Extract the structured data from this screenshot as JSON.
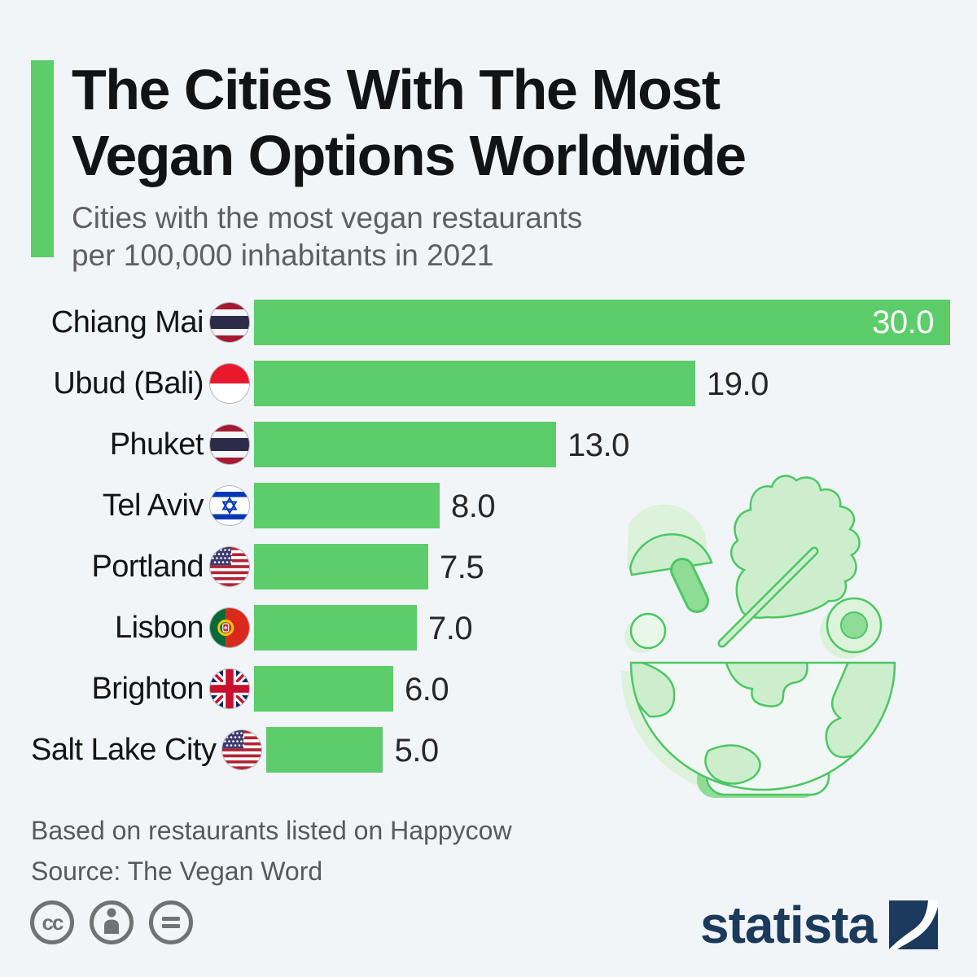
{
  "header": {
    "title": "The Cities With The Most\nVegan Options Worldwide",
    "subtitle": "Cities with the most vegan restaurants\nper 100,000 inhabitants in 2021",
    "accent_color": "#5ccd6a"
  },
  "chart_data": {
    "type": "bar",
    "orientation": "horizontal",
    "title": "The Cities With The Most Vegan Options Worldwide",
    "subtitle": "Cities with the most vegan restaurants per 100,000 inhabitants in 2021",
    "unit": "vegan restaurants per 100,000 inhabitants",
    "xlim": [
      0,
      30
    ],
    "grid": false,
    "legend": false,
    "bar_color": "#5ccd6a",
    "categories": [
      "Chiang Mai",
      "Ubud (Bali)",
      "Phuket",
      "Tel Aviv",
      "Portland",
      "Lisbon",
      "Brighton",
      "Salt Lake City"
    ],
    "values": [
      30.0,
      19.0,
      13.0,
      8.0,
      7.5,
      7.0,
      6.0,
      5.0
    ],
    "rows": [
      {
        "label": "Chiang Mai",
        "flag": "thailand-flag",
        "value": 30.0,
        "value_label": "30.0",
        "value_inside": true
      },
      {
        "label": "Ubud (Bali)",
        "flag": "indonesia-flag",
        "value": 19.0,
        "value_label": "19.0",
        "value_inside": false
      },
      {
        "label": "Phuket",
        "flag": "thailand-flag",
        "value": 13.0,
        "value_label": "13.0",
        "value_inside": false
      },
      {
        "label": "Tel Aviv",
        "flag": "israel-flag",
        "value": 8.0,
        "value_label": "8.0",
        "value_inside": false
      },
      {
        "label": "Portland",
        "flag": "usa-flag",
        "value": 7.5,
        "value_label": "7.5",
        "value_inside": false
      },
      {
        "label": "Lisbon",
        "flag": "portugal-flag",
        "value": 7.0,
        "value_label": "7.0",
        "value_inside": false
      },
      {
        "label": "Brighton",
        "flag": "united-kingdom-flag",
        "value": 6.0,
        "value_label": "6.0",
        "value_inside": false
      },
      {
        "label": "Salt Lake City",
        "flag": "usa-flag",
        "value": 5.0,
        "value_label": "5.0",
        "value_inside": false
      }
    ]
  },
  "illustration": {
    "name": "vegan-earth-salad-bowl-illustration"
  },
  "footer": {
    "note": "Based on restaurants listed on Happycow",
    "source": "Source: The Vegan Word",
    "license_icons": [
      "cc-icon",
      "attribution-icon",
      "no-derivatives-icon"
    ],
    "brand": "statista",
    "brand_color": "#1b3a5c"
  }
}
